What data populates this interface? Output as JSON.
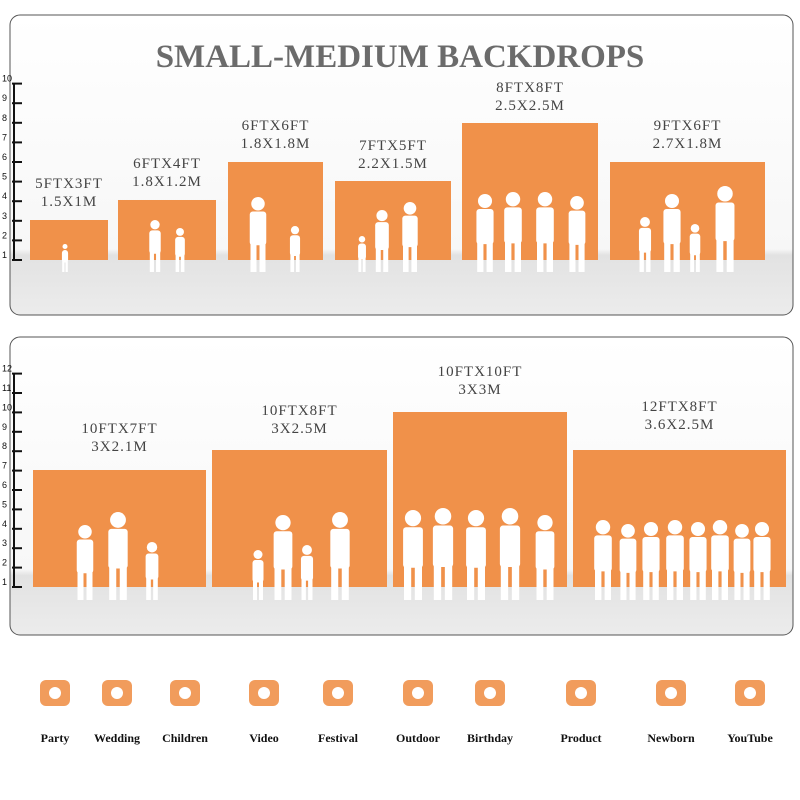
{
  "header": {
    "title": "SMALL-MEDIUM BACKDROPS"
  },
  "panels": [
    {
      "scale": [
        1,
        2,
        3,
        4,
        5,
        6,
        7,
        8,
        9,
        10
      ],
      "backdrops": [
        {
          "size": "5FTX3FT",
          "metric": "1.5X1M"
        },
        {
          "size": "6FTX4FT",
          "metric": "1.8X1.2M"
        },
        {
          "size": "6FTX6FT",
          "metric": "1.8X1.8M"
        },
        {
          "size": "7FTX5FT",
          "metric": "2.2X1.5M"
        },
        {
          "size": "8FTX8FT",
          "metric": "2.5X2.5M"
        },
        {
          "size": "9FTX6FT",
          "metric": "2.7X1.8M"
        }
      ]
    },
    {
      "scale": [
        1,
        2,
        3,
        4,
        5,
        6,
        7,
        8,
        9,
        10,
        11,
        12
      ],
      "backdrops": [
        {
          "size": "10FTX7FT",
          "metric": "3X2.1M"
        },
        {
          "size": "10FTX8FT",
          "metric": "3X2.5M"
        },
        {
          "size": "10FTX10FT",
          "metric": "3X3M"
        },
        {
          "size": "12FTX8FT",
          "metric": "3.6X2.5M"
        }
      ]
    }
  ],
  "uses": [
    "Party",
    "Wedding",
    "Children",
    "Video",
    "Festival",
    "Outdoor",
    "Birthday",
    "Product",
    "Newborn",
    "YouTube"
  ]
}
